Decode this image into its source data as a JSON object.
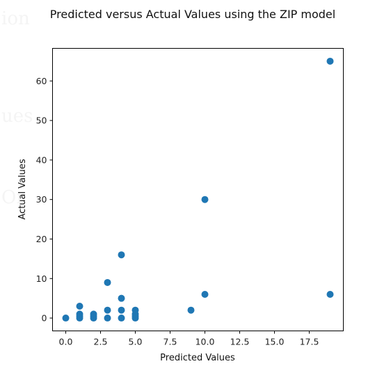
{
  "chart_data": {
    "type": "scatter",
    "title": "Predicted versus Actual Values using the ZIP model",
    "xlabel": "Predicted Values",
    "ylabel": "Actual Values",
    "xlim": [
      -0.95,
      19.95
    ],
    "ylim": [
      -3.25,
      68.25
    ],
    "xticks": [
      0,
      2.5,
      5,
      7.5,
      10,
      12.5,
      15,
      17.5
    ],
    "xtick_labels": [
      "0.0",
      "2.5",
      "5.0",
      "7.5",
      "10.0",
      "12.5",
      "15.0",
      "17.5"
    ],
    "yticks": [
      0,
      10,
      20,
      30,
      40,
      50,
      60
    ],
    "ytick_labels": [
      "0",
      "10",
      "20",
      "30",
      "40",
      "50",
      "60"
    ],
    "grid": false,
    "color": "#1f77b4",
    "points": [
      {
        "x": 0,
        "y": 0
      },
      {
        "x": 1,
        "y": 0
      },
      {
        "x": 1,
        "y": 0.5
      },
      {
        "x": 1,
        "y": 1
      },
      {
        "x": 1,
        "y": 3
      },
      {
        "x": 2,
        "y": 0
      },
      {
        "x": 2,
        "y": 0.5
      },
      {
        "x": 2,
        "y": 1
      },
      {
        "x": 3,
        "y": 0
      },
      {
        "x": 3,
        "y": 2
      },
      {
        "x": 3,
        "y": 9
      },
      {
        "x": 4,
        "y": 0
      },
      {
        "x": 4,
        "y": 2
      },
      {
        "x": 4,
        "y": 5
      },
      {
        "x": 4,
        "y": 16
      },
      {
        "x": 5,
        "y": 0
      },
      {
        "x": 5,
        "y": 0.5
      },
      {
        "x": 5,
        "y": 1
      },
      {
        "x": 5,
        "y": 2
      },
      {
        "x": 9,
        "y": 2
      },
      {
        "x": 10,
        "y": 6
      },
      {
        "x": 10,
        "y": 30
      },
      {
        "x": 19,
        "y": 6
      },
      {
        "x": 19,
        "y": 65
      }
    ]
  }
}
